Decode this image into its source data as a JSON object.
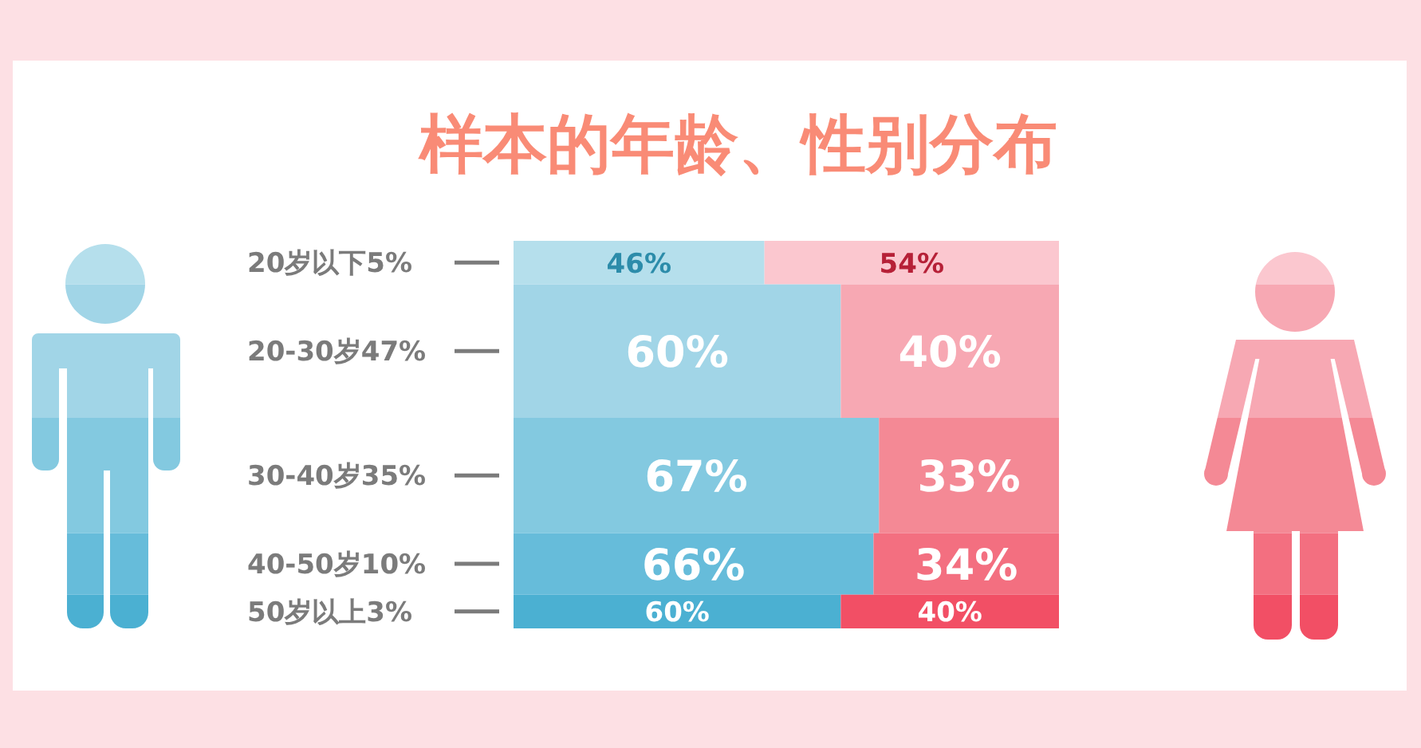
{
  "chart_data": {
    "type": "bar",
    "orientation": "horizontal",
    "stacked": true,
    "title": "样本的年龄、性别分布",
    "categories": [
      "20岁以下5%",
      "20-30岁47%",
      "30-40岁35%",
      "40-50岁10%",
      "50岁以上3%"
    ],
    "xlim": [
      0,
      100
    ],
    "tick_labels": "y",
    "series": [
      {
        "colors": [
          "#b5dfec",
          "#a1d5e7",
          "#83c9e0",
          "#66bcda",
          "#4bb0d2"
        ],
        "values": [
          46,
          60,
          67,
          66,
          60
        ],
        "value_labels": [
          "46%",
          "60%",
          "67%",
          "66%",
          "60%"
        ]
      },
      {
        "colors": [
          "#fbc7cf",
          "#f7a8b3",
          "#f48995",
          "#f36f80",
          "#f24f65"
        ],
        "values": [
          54,
          40,
          33,
          34,
          40
        ],
        "value_labels": [
          "54%",
          "40%",
          "33%",
          "34%",
          "40%"
        ]
      }
    ]
  }
}
